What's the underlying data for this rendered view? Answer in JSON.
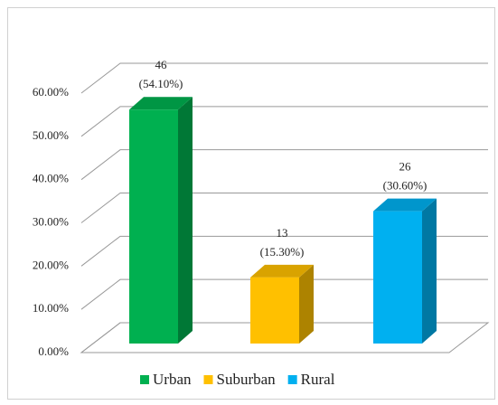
{
  "chart_data": {
    "type": "bar3d",
    "categories": [
      "Urban",
      "Suburban",
      "Rural"
    ],
    "series": [
      {
        "name": "Urban",
        "color": "#00b050"
      },
      {
        "name": "Suburban",
        "color": "#ffc000"
      },
      {
        "name": "Rural",
        "color": "#00b0f0"
      }
    ],
    "values": [
      54.1,
      15.3,
      30.6
    ],
    "counts": [
      46,
      13,
      26
    ],
    "value_labels": [
      "(54.10%)",
      "(15.30%)",
      "(30.60%)"
    ],
    "ylim": [
      0,
      60
    ],
    "yticks": [
      {
        "value": 0,
        "label": "0.00%"
      },
      {
        "value": 10,
        "label": "10.00%"
      },
      {
        "value": 20,
        "label": "20.00%"
      },
      {
        "value": 30,
        "label": "30.00%"
      },
      {
        "value": 40,
        "label": "40.00%"
      },
      {
        "value": 50,
        "label": "50.00%"
      },
      {
        "value": 60,
        "label": "60.00%"
      }
    ],
    "grid": true,
    "legend": "bottom"
  }
}
